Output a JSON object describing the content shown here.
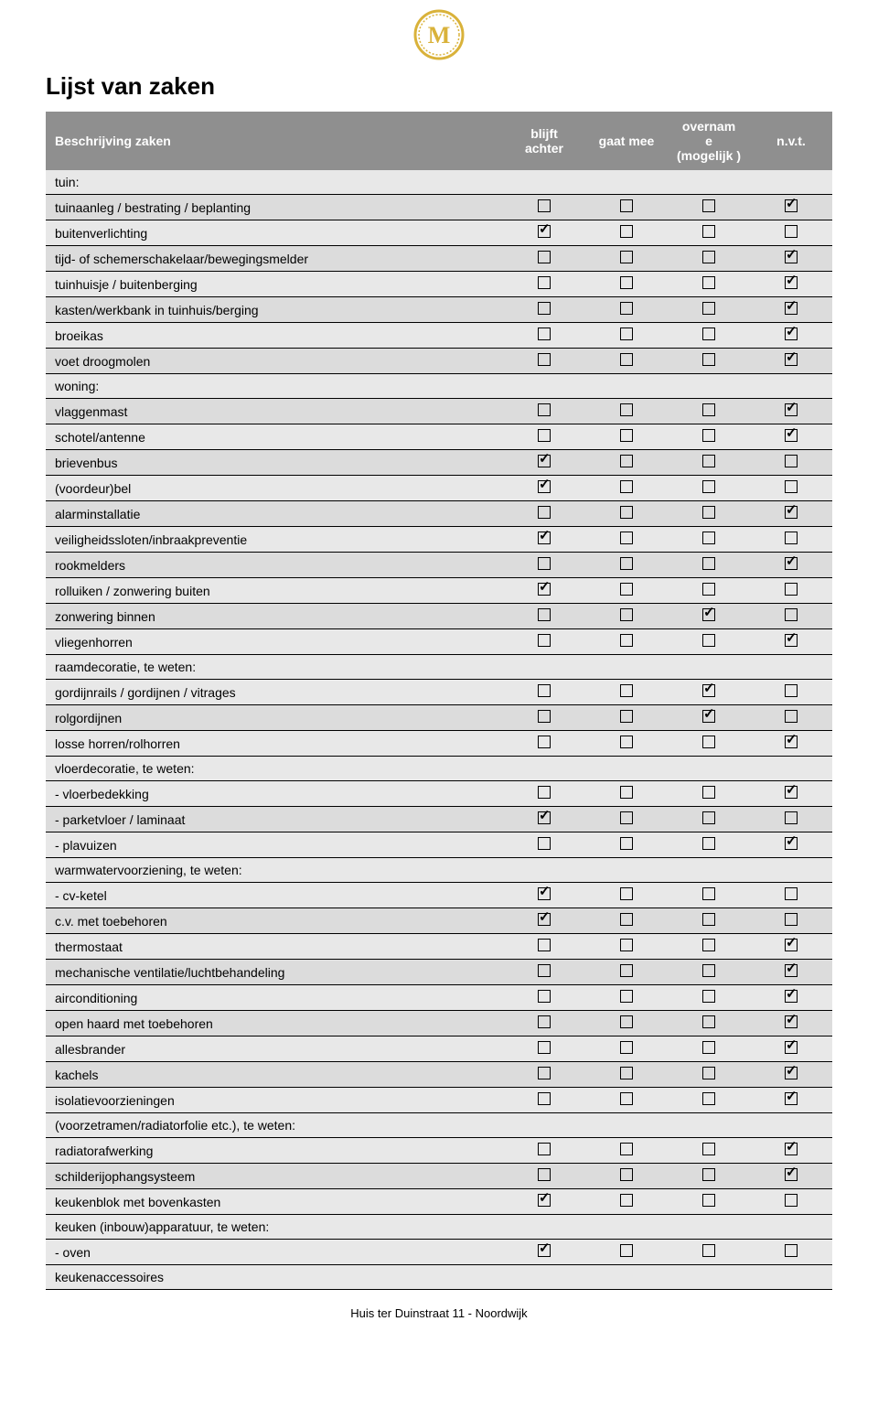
{
  "page_title": "Lijst van zaken",
  "footer": "Huis ter Duinstraat 11 - Noordwijk",
  "logo": {
    "letter": "M",
    "stroke": "#d9b23a",
    "fill": "#d9b23a"
  },
  "columns": [
    "Beschrijving zaken",
    "blijft achter",
    "gaat mee",
    "overnam e (mogelijk )",
    "n.v.t."
  ],
  "rows": [
    {
      "type": "section",
      "label": "tuin:"
    },
    {
      "type": "item",
      "label": "tuinaanleg / bestrating / beplanting",
      "checks": [
        false,
        false,
        false,
        true
      ]
    },
    {
      "type": "item",
      "label": "buitenverlichting",
      "checks": [
        true,
        false,
        false,
        false
      ]
    },
    {
      "type": "item",
      "label": "tijd- of schemerschakelaar/bewegingsmelder",
      "checks": [
        false,
        false,
        false,
        true
      ]
    },
    {
      "type": "item",
      "label": "tuinhuisje / buitenberging",
      "checks": [
        false,
        false,
        false,
        true
      ]
    },
    {
      "type": "item",
      "label": "kasten/werkbank in tuinhuis/berging",
      "checks": [
        false,
        false,
        false,
        true
      ]
    },
    {
      "type": "item",
      "label": "broeikas",
      "checks": [
        false,
        false,
        false,
        true
      ]
    },
    {
      "type": "item",
      "label": "voet droogmolen",
      "checks": [
        false,
        false,
        false,
        true
      ]
    },
    {
      "type": "section",
      "label": "woning:"
    },
    {
      "type": "item",
      "label": "vlaggenmast",
      "checks": [
        false,
        false,
        false,
        true
      ]
    },
    {
      "type": "item",
      "label": "schotel/antenne",
      "checks": [
        false,
        false,
        false,
        true
      ]
    },
    {
      "type": "item",
      "label": "brievenbus",
      "checks": [
        true,
        false,
        false,
        false
      ]
    },
    {
      "type": "item",
      "label": "(voordeur)bel",
      "checks": [
        true,
        false,
        false,
        false
      ]
    },
    {
      "type": "item",
      "label": "alarminstallatie",
      "checks": [
        false,
        false,
        false,
        true
      ]
    },
    {
      "type": "item",
      "label": "veiligheidssloten/inbraakpreventie",
      "checks": [
        true,
        false,
        false,
        false
      ]
    },
    {
      "type": "item",
      "label": "rookmelders",
      "checks": [
        false,
        false,
        false,
        true
      ]
    },
    {
      "type": "item",
      "label": "rolluiken / zonwering buiten",
      "checks": [
        true,
        false,
        false,
        false
      ]
    },
    {
      "type": "item",
      "label": "zonwering binnen",
      "checks": [
        false,
        false,
        true,
        false
      ]
    },
    {
      "type": "item",
      "label": "vliegenhorren",
      "checks": [
        false,
        false,
        false,
        true
      ]
    },
    {
      "type": "section",
      "label": "raamdecoratie, te weten:"
    },
    {
      "type": "item",
      "label": "gordijnrails / gordijnen / vitrages",
      "checks": [
        false,
        false,
        true,
        false
      ]
    },
    {
      "type": "item",
      "label": "rolgordijnen",
      "checks": [
        false,
        false,
        true,
        false
      ]
    },
    {
      "type": "item",
      "label": "losse horren/rolhorren",
      "checks": [
        false,
        false,
        false,
        true
      ]
    },
    {
      "type": "section",
      "label": "vloerdecoratie, te weten:"
    },
    {
      "type": "item",
      "label": "-  vloerbedekking",
      "checks": [
        false,
        false,
        false,
        true
      ]
    },
    {
      "type": "item",
      "label": "-  parketvloer / laminaat",
      "checks": [
        true,
        false,
        false,
        false
      ]
    },
    {
      "type": "item",
      "label": "-  plavuizen",
      "checks": [
        false,
        false,
        false,
        true
      ]
    },
    {
      "type": "section",
      "label": "warmwatervoorziening, te weten:"
    },
    {
      "type": "item",
      "label": "-  cv-ketel",
      "checks": [
        true,
        false,
        false,
        false
      ]
    },
    {
      "type": "item",
      "label": "c.v. met toebehoren",
      "checks": [
        true,
        false,
        false,
        false
      ]
    },
    {
      "type": "item",
      "label": "thermostaat",
      "checks": [
        false,
        false,
        false,
        true
      ]
    },
    {
      "type": "item",
      "label": "mechanische ventilatie/luchtbehandeling",
      "checks": [
        false,
        false,
        false,
        true
      ]
    },
    {
      "type": "item",
      "label": "airconditioning",
      "checks": [
        false,
        false,
        false,
        true
      ]
    },
    {
      "type": "item",
      "label": "open haard met toebehoren",
      "checks": [
        false,
        false,
        false,
        true
      ]
    },
    {
      "type": "item",
      "label": "allesbrander",
      "checks": [
        false,
        false,
        false,
        true
      ]
    },
    {
      "type": "item",
      "label": "kachels",
      "checks": [
        false,
        false,
        false,
        true
      ]
    },
    {
      "type": "item",
      "label": "isolatievoorzieningen",
      "checks": [
        false,
        false,
        false,
        true
      ]
    },
    {
      "type": "section",
      "label": "(voorzetramen/radiatorfolie etc.), te weten:"
    },
    {
      "type": "item",
      "label": "radiatorafwerking",
      "checks": [
        false,
        false,
        false,
        true
      ]
    },
    {
      "type": "item",
      "label": "schilderijophangsysteem",
      "checks": [
        false,
        false,
        false,
        true
      ]
    },
    {
      "type": "item",
      "label": "keukenblok met bovenkasten",
      "checks": [
        true,
        false,
        false,
        false
      ]
    },
    {
      "type": "section",
      "label": "keuken (inbouw)apparatuur, te weten:"
    },
    {
      "type": "item",
      "label": "-  oven",
      "checks": [
        true,
        false,
        false,
        false
      ]
    },
    {
      "type": "section",
      "label": "keukenaccessoires"
    }
  ]
}
